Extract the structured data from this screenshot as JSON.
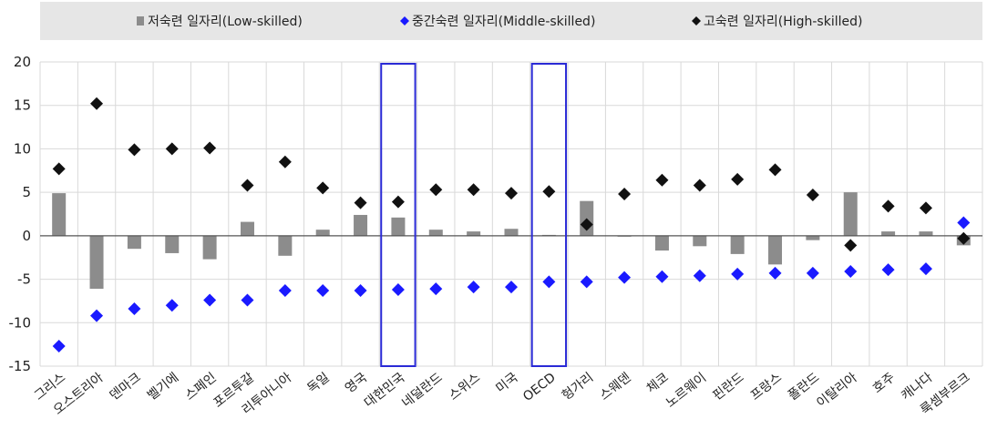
{
  "chart_data": {
    "type": "bar",
    "categories": [
      "그리스",
      "오스트리아",
      "덴마크",
      "벨기에",
      "스페인",
      "포르투갈",
      "리투아니아",
      "독일",
      "영국",
      "대한민국",
      "네덜란드",
      "스위스",
      "미국",
      "OECD",
      "헝가리",
      "스웨덴",
      "체코",
      "노르웨이",
      "핀란드",
      "프랑스",
      "폴란드",
      "이탈리아",
      "호주",
      "캐나다",
      "룩셈부르크"
    ],
    "series": [
      {
        "name": "저숙련 일자리(Low-skilled)",
        "kind": "bar",
        "color": "#8c8c8c",
        "marker": "■",
        "values": [
          4.9,
          -6.1,
          -1.5,
          -2.0,
          -2.7,
          1.6,
          -2.3,
          0.7,
          2.4,
          2.1,
          0.7,
          0.5,
          0.8,
          0.1,
          4.0,
          0.0,
          -1.7,
          -1.2,
          -2.1,
          -3.3,
          -0.5,
          5.0,
          0.5,
          0.5,
          -1.1
        ]
      },
      {
        "name": "중간숙련 일자리(Middle-skilled)",
        "kind": "marker",
        "color": "#1a1aff",
        "marker": "◆",
        "values": [
          -12.7,
          -9.2,
          -8.4,
          -8.0,
          -7.4,
          -7.4,
          -6.3,
          -6.3,
          -6.3,
          -6.2,
          -6.1,
          -5.9,
          -5.9,
          -5.3,
          -5.3,
          -4.8,
          -4.7,
          -4.6,
          -4.4,
          -4.3,
          -4.3,
          -4.1,
          -3.9,
          -3.8,
          1.5
        ]
      },
      {
        "name": "고숙련 일자리(High-skilled)",
        "kind": "marker",
        "color": "#111111",
        "marker": "◆",
        "values": [
          7.7,
          15.2,
          9.9,
          10.0,
          10.1,
          5.8,
          8.5,
          5.5,
          3.8,
          3.9,
          5.3,
          5.3,
          4.9,
          5.1,
          1.3,
          4.8,
          6.4,
          5.8,
          6.5,
          7.6,
          4.7,
          -1.1,
          3.4,
          3.2,
          -0.3
        ]
      }
    ],
    "ylim": [
      -15,
      20
    ],
    "yticks": [
      20,
      15,
      10,
      5,
      0,
      -5,
      -10,
      -15
    ],
    "highlighted_categories": [
      "대한민국",
      "OECD"
    ],
    "highlight_color": "#2a2ad6",
    "grid": true,
    "legend_position": "top"
  }
}
